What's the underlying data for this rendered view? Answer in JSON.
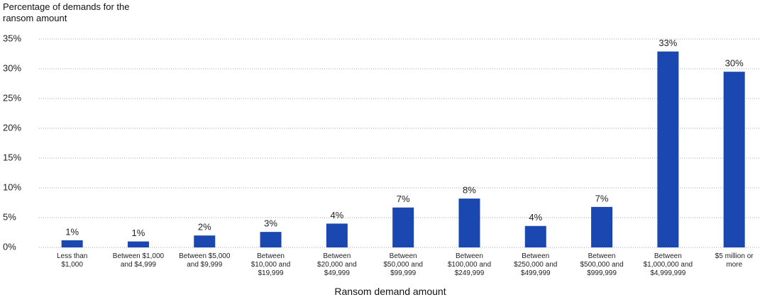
{
  "chart_data": {
    "type": "bar",
    "y_axis_title": "Percentage of demands for the ransom amount",
    "x_axis_title": "Ransom demand amount",
    "categories": [
      "Less than $1,000",
      "Between $1,000 and $4,999",
      "Between $5,000 and $9,999",
      "Between $10,000 and $19,999",
      "Between $20,000 and $49,999",
      "Between $50,000 and $99,999",
      "Between $100,000 and $249,999",
      "Between $250,000 and $499,999",
      "Between $500,000 and $999,999",
      "Between $1,000,000 and $4,999,999",
      "$5 million or more"
    ],
    "values": [
      1.2,
      1.0,
      2.0,
      2.6,
      4.0,
      6.7,
      8.2,
      3.6,
      6.8,
      32.9,
      29.5
    ],
    "value_labels": [
      "1%",
      "1%",
      "2%",
      "3%",
      "4%",
      "7%",
      "8%",
      "4%",
      "7%",
      "33%",
      "30%"
    ],
    "color": "#1a47b0",
    "ylim": [
      0,
      35
    ],
    "yticks": [
      {
        "value": 0,
        "label": "0%"
      },
      {
        "value": 5,
        "label": "5%"
      },
      {
        "value": 10,
        "label": "10%"
      },
      {
        "value": 15,
        "label": "15%"
      },
      {
        "value": 20,
        "label": "20%"
      },
      {
        "value": 25,
        "label": "25%"
      },
      {
        "value": 30,
        "label": "30%"
      },
      {
        "value": 35,
        "label": "35%"
      }
    ],
    "grid": true
  }
}
